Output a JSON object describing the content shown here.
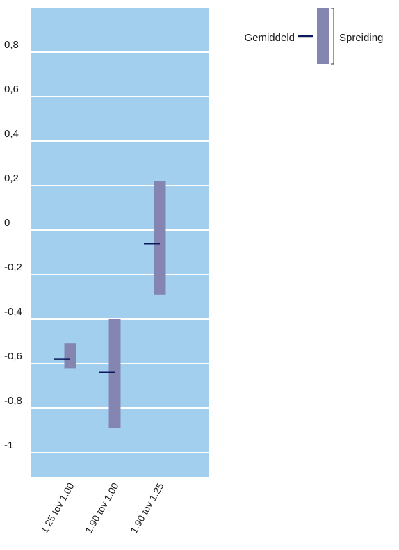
{
  "chart_data": {
    "type": "range-bar",
    "categories": [
      "1.25 tov 1.00",
      "1.90 tov 1.00",
      "1.90 tov 1.25"
    ],
    "series": [
      {
        "name": "Spreiding",
        "low": [
          -0.62,
          -0.89,
          -0.29
        ],
        "high": [
          -0.51,
          -0.4,
          0.22
        ]
      },
      {
        "name": "Gemiddeld",
        "values": [
          -0.58,
          -0.64,
          -0.06
        ]
      }
    ],
    "yticks": [
      0.8,
      0.6,
      0.4,
      0.2,
      0,
      -0.2,
      -0.4,
      -0.6,
      -0.8,
      -1
    ],
    "ytick_labels": [
      "0,8",
      "0,6",
      "0,4",
      "0,2",
      "0",
      "-0,2",
      "-0,4",
      "-0,6",
      "-0,8",
      "-1"
    ],
    "ylim": [
      -1.1,
      1.0
    ],
    "grid": true,
    "legend_position": "top-right",
    "legend": {
      "mean_label": "Gemiddeld",
      "range_label": "Spreiding"
    },
    "colors": {
      "plot_background": "#a3cfee",
      "gridline": "#ffffff",
      "range_bar": "#8585b2",
      "mean_marker": "#0a1a5c"
    }
  }
}
